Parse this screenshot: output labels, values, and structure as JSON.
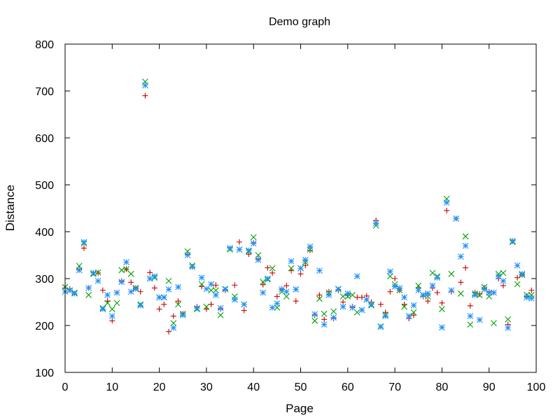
{
  "chart_data": {
    "type": "scatter",
    "title": "Demo graph",
    "xlabel": "Page",
    "ylabel": "Distance",
    "xlim": [
      0,
      100
    ],
    "ylim": [
      100,
      800
    ],
    "xticks": [
      0,
      10,
      20,
      30,
      40,
      50,
      60,
      70,
      80,
      90,
      100
    ],
    "yticks": [
      100,
      200,
      300,
      400,
      500,
      600,
      700,
      800
    ],
    "grid": false,
    "legend": "none",
    "series": [
      {
        "color": "#cc0000",
        "marker": "plus",
        "x": [
          0,
          1,
          2,
          3,
          4,
          5,
          6,
          7,
          8,
          9,
          10,
          11,
          12,
          13,
          14,
          15,
          16,
          17,
          18,
          19,
          20,
          21,
          22,
          23,
          24,
          25,
          26,
          27,
          28,
          29,
          30,
          31,
          32,
          33,
          34,
          35,
          36,
          37,
          38,
          39,
          40,
          41,
          42,
          43,
          44,
          45,
          46,
          47,
          48,
          49,
          50,
          51,
          52,
          53,
          54,
          55,
          56,
          57,
          58,
          59,
          60,
          61,
          62,
          63,
          64,
          65,
          66,
          67,
          68,
          69,
          70,
          71,
          72,
          73,
          74,
          75,
          76,
          77,
          78,
          79,
          80,
          81,
          82,
          83,
          84,
          85,
          86,
          87,
          88,
          89,
          90,
          91,
          92,
          93,
          94,
          95,
          96,
          97,
          98,
          99
        ],
        "y": [
          280,
          278,
          268,
          320,
          365,
          280,
          312,
          312,
          275,
          252,
          210,
          270,
          295,
          320,
          292,
          280,
          272,
          690,
          313,
          280,
          235,
          245,
          187,
          220,
          252,
          225,
          352,
          325,
          240,
          283,
          235,
          245,
          286,
          235,
          275,
          365,
          286,
          378,
          232,
          352,
          376,
          342,
          287,
          323,
          312,
          262,
          278,
          285,
          317,
          252,
          310,
          328,
          360,
          222,
          265,
          213,
          272,
          215,
          275,
          250,
          265,
          240,
          260,
          260,
          263,
          250,
          424,
          245,
          228,
          272,
          300,
          275,
          245,
          215,
          222,
          280,
          262,
          252,
          280,
          270,
          248,
          445,
          272,
          428,
          292,
          323,
          242,
          270,
          267,
          280,
          272,
          270,
          300,
          285,
          202,
          380,
          302,
          308,
          262,
          275
        ]
      },
      {
        "color": "#00a000",
        "marker": "x",
        "x": [
          0,
          1,
          2,
          3,
          4,
          5,
          6,
          7,
          8,
          9,
          10,
          11,
          12,
          13,
          14,
          15,
          16,
          17,
          18,
          19,
          20,
          21,
          22,
          23,
          24,
          25,
          26,
          27,
          28,
          29,
          30,
          31,
          32,
          33,
          34,
          35,
          36,
          37,
          38,
          39,
          40,
          41,
          42,
          43,
          44,
          45,
          46,
          47,
          48,
          49,
          50,
          51,
          52,
          53,
          54,
          55,
          56,
          57,
          58,
          59,
          60,
          61,
          62,
          63,
          64,
          65,
          66,
          67,
          68,
          69,
          70,
          71,
          72,
          73,
          74,
          75,
          76,
          77,
          78,
          79,
          80,
          81,
          82,
          83,
          84,
          85,
          86,
          87,
          88,
          89,
          90,
          91,
          92,
          93,
          94,
          95,
          96,
          97,
          98,
          99
        ],
        "y": [
          282,
          275,
          270,
          327,
          375,
          265,
          310,
          313,
          237,
          248,
          235,
          248,
          318,
          320,
          310,
          280,
          245,
          720,
          300,
          302,
          260,
          260,
          295,
          205,
          245,
          225,
          358,
          328,
          235,
          288,
          240,
          275,
          275,
          222,
          278,
          362,
          262,
          362,
          245,
          358,
          388,
          350,
          293,
          298,
          322,
          238,
          272,
          262,
          322,
          277,
          322,
          335,
          362,
          210,
          257,
          225,
          270,
          230,
          278,
          262,
          262,
          265,
          228,
          233,
          255,
          243,
          413,
          198,
          223,
          305,
          288,
          275,
          240,
          220,
          228,
          285,
          265,
          262,
          312,
          305,
          235,
          470,
          310,
          428,
          268,
          390,
          202,
          268,
          265,
          282,
          262,
          205,
          310,
          312,
          213,
          378,
          288,
          308,
          265,
          265
        ]
      },
      {
        "color": "#1e90ff",
        "marker": "star",
        "x": [
          0,
          1,
          2,
          3,
          4,
          5,
          6,
          7,
          8,
          9,
          10,
          11,
          12,
          13,
          14,
          15,
          16,
          17,
          18,
          19,
          20,
          21,
          22,
          23,
          24,
          25,
          26,
          27,
          28,
          29,
          30,
          31,
          32,
          33,
          34,
          35,
          36,
          37,
          38,
          39,
          40,
          41,
          42,
          43,
          44,
          45,
          46,
          47,
          48,
          49,
          50,
          51,
          52,
          53,
          54,
          55,
          56,
          57,
          58,
          59,
          60,
          61,
          62,
          63,
          64,
          65,
          66,
          67,
          68,
          69,
          70,
          71,
          72,
          73,
          74,
          75,
          76,
          77,
          78,
          79,
          80,
          81,
          82,
          83,
          84,
          85,
          86,
          87,
          88,
          89,
          90,
          91,
          92,
          93,
          94,
          95,
          96,
          97,
          98,
          99
        ],
        "y": [
          272,
          275,
          268,
          318,
          378,
          280,
          312,
          295,
          235,
          265,
          220,
          270,
          293,
          335,
          272,
          278,
          243,
          712,
          300,
          305,
          260,
          260,
          277,
          195,
          282,
          222,
          350,
          325,
          237,
          302,
          278,
          288,
          265,
          237,
          277,
          365,
          255,
          362,
          245,
          360,
          375,
          340,
          270,
          300,
          238,
          247,
          277,
          272,
          337,
          277,
          322,
          340,
          368,
          224,
          317,
          202,
          265,
          217,
          277,
          240,
          268,
          238,
          305,
          233,
          255,
          245,
          418,
          197,
          220,
          315,
          283,
          280,
          260,
          220,
          243,
          275,
          265,
          268,
          285,
          302,
          196,
          462,
          275,
          428,
          347,
          370,
          220,
          265,
          212,
          277,
          270,
          270,
          305,
          295,
          195,
          380,
          328,
          310,
          260,
          258
        ]
      }
    ]
  }
}
